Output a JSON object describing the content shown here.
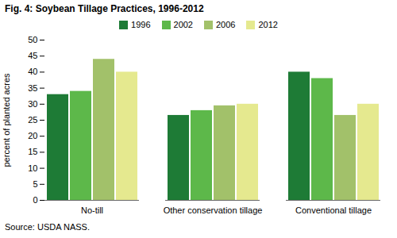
{
  "chart_data": {
    "type": "bar",
    "title": "Fig. 4: Soybean Tillage Practices, 1996-2012",
    "y_label": "percent of planted acres",
    "caption": "Source: USDA NASS.",
    "categories": [
      "No-till",
      "Other conservation tillage",
      "Conventional tillage"
    ],
    "series": [
      {
        "name": "1996",
        "color": "#1e7b36",
        "values": [
          33,
          26.5,
          40
        ]
      },
      {
        "name": "2002",
        "color": "#5db84a",
        "values": [
          34,
          28,
          38
        ]
      },
      {
        "name": "2006",
        "color": "#a2c16a",
        "values": [
          44,
          29.5,
          26.5
        ]
      },
      {
        "name": "2012",
        "color": "#e5e98f",
        "values": [
          40,
          30,
          30
        ]
      }
    ],
    "ylim": [
      0,
      50
    ],
    "yticks": [
      0,
      5,
      10,
      15,
      20,
      25,
      30,
      35,
      40,
      45,
      50
    ],
    "grid": false,
    "legend": "top"
  }
}
